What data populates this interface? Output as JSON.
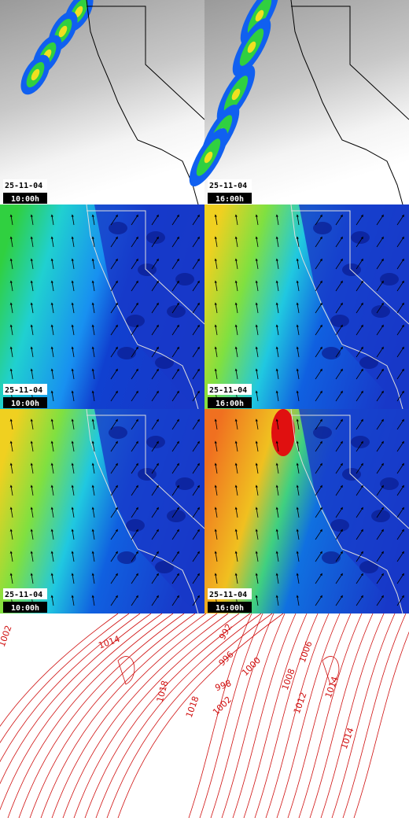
{
  "panels": [
    {
      "date": "25-11-04",
      "time": "10:00h"
    },
    {
      "date": "25-11-04",
      "time": "16:00h"
    },
    {
      "date": "25-11-04",
      "time": "10:00h"
    },
    {
      "date": "25-11-04",
      "time": "16:00h"
    },
    {
      "date": "25-11-04",
      "time": "10:00h"
    },
    {
      "date": "25-11-04",
      "time": "16:00h"
    }
  ],
  "isobar_labels": {
    "left": [
      "1002",
      "1014",
      "1018"
    ],
    "right": [
      "992",
      "996",
      "998",
      "1000",
      "1002",
      "1006",
      "1008",
      "1012",
      "1014",
      "1014",
      "1018"
    ]
  }
}
